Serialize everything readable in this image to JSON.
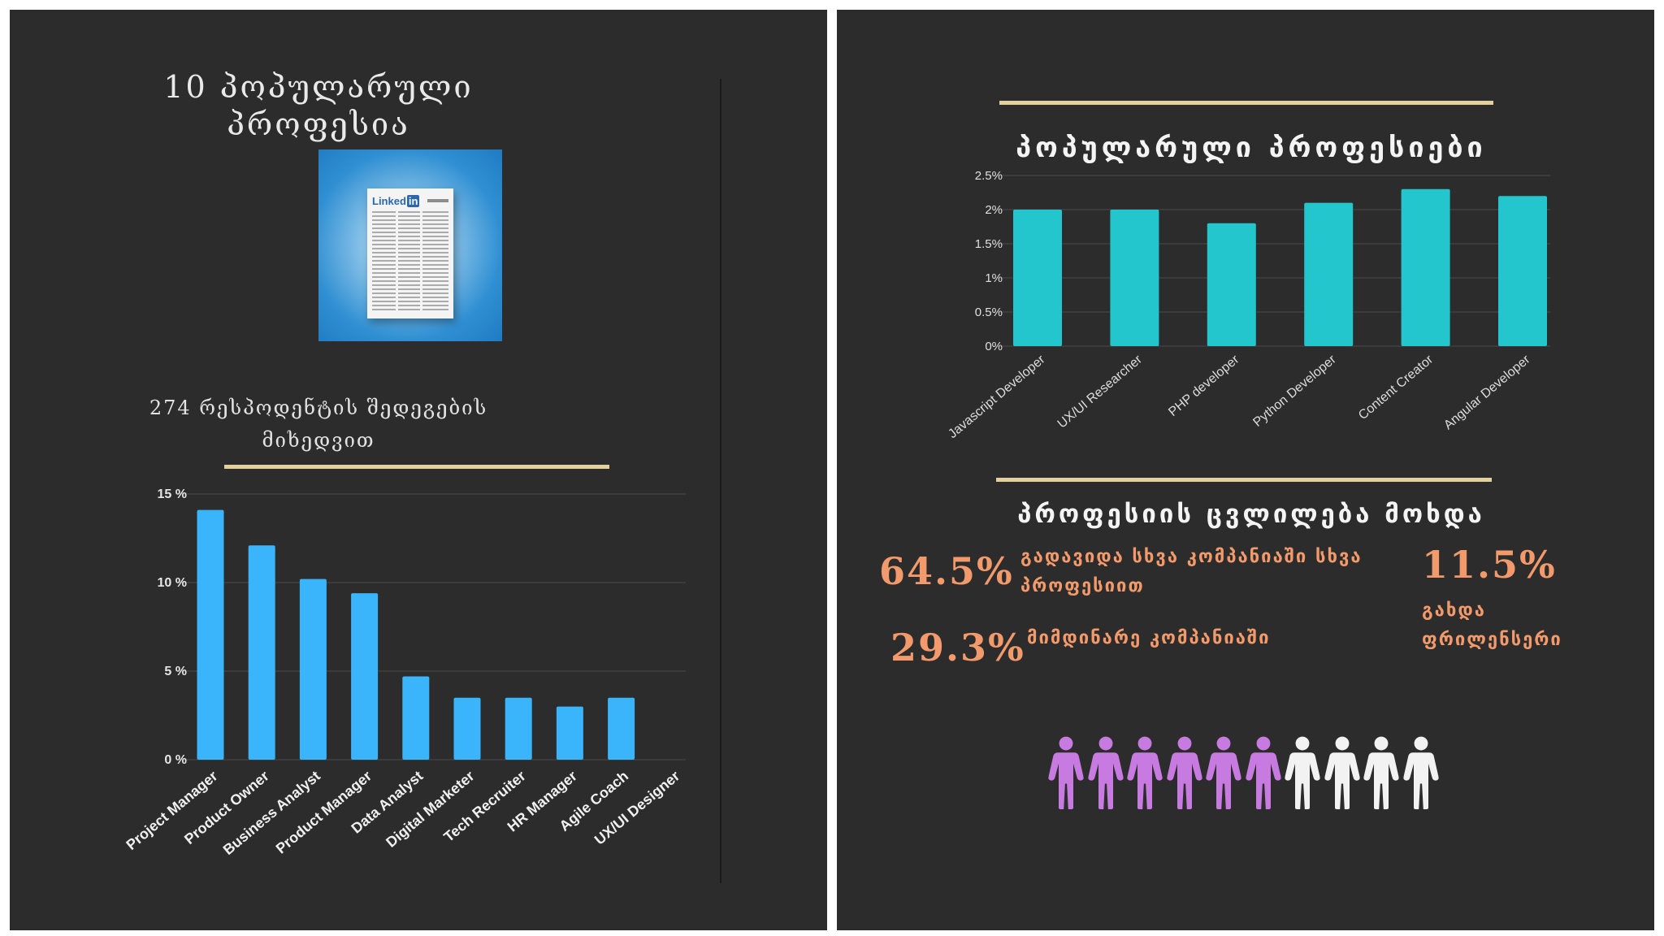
{
  "left": {
    "title": "10 პოპულარული პროფესია",
    "subtitle": "274 რესპოდენტის შედეგების მიხედვით"
  },
  "right": {
    "heading": "პოპულარული პროფესიები",
    "change_heading": "პროფესიის ცვლილება მოხდა",
    "stats": [
      {
        "value": "64.5%",
        "label": "გადავიდა სხვა კომპანიაში სხვა პროფესიით"
      },
      {
        "value": "29.3%",
        "label": "მიმდინარე კომპანიაში"
      },
      {
        "value": "11.5%",
        "label": "გახდა ფრილენსერი"
      }
    ]
  },
  "pictogram": {
    "total": 10,
    "highlighted": 6,
    "highlight_color": "#c77be0",
    "base_color": "#f2f2f2",
    "icon": "person-icon"
  },
  "colors": {
    "panel_bg": "#2c2c2c",
    "left_bar": "#3ab4fb",
    "right_bar": "#22c6cc",
    "accent_rule": "#e2d19c",
    "stat_orange": "#f29a6b"
  },
  "chart_data": [
    {
      "type": "bar",
      "title": "",
      "xlabel": "",
      "ylabel": "",
      "categories": [
        "Project Manager",
        "Product Owner",
        "Business Analyst",
        "Product Manager",
        "Data Analyst",
        "Digital Marketer",
        "Tech Recruiter",
        "HR Manager",
        "Agile Coach",
        "UX/UI Designer"
      ],
      "values": [
        14.1,
        12.1,
        10.2,
        9.4,
        4.7,
        3.5,
        3.5,
        3.0,
        3.5,
        0
      ],
      "ylim": [
        0,
        15
      ],
      "yticks": [
        "0 %",
        "5 %",
        "10 %",
        "15 %"
      ],
      "ytick_values": [
        0,
        5,
        10,
        15
      ],
      "grid": true,
      "color": "#3ab4fb"
    },
    {
      "type": "bar",
      "title": "პოპულარული პროფესიები",
      "xlabel": "",
      "ylabel": "",
      "categories": [
        "Javascript Developer",
        "UX/UI Researcher",
        "PHP developer",
        "Python Developer",
        "Content Creator",
        "Angular Developer"
      ],
      "values": [
        2.0,
        2.0,
        1.8,
        2.1,
        2.3,
        2.2
      ],
      "ylim": [
        0,
        2.5
      ],
      "yticks": [
        "0%",
        "0.5%",
        "1%",
        "1.5%",
        "2%",
        "2.5%"
      ],
      "ytick_values": [
        0,
        0.5,
        1,
        1.5,
        2,
        2.5
      ],
      "grid": true,
      "color": "#22c6cc"
    }
  ]
}
